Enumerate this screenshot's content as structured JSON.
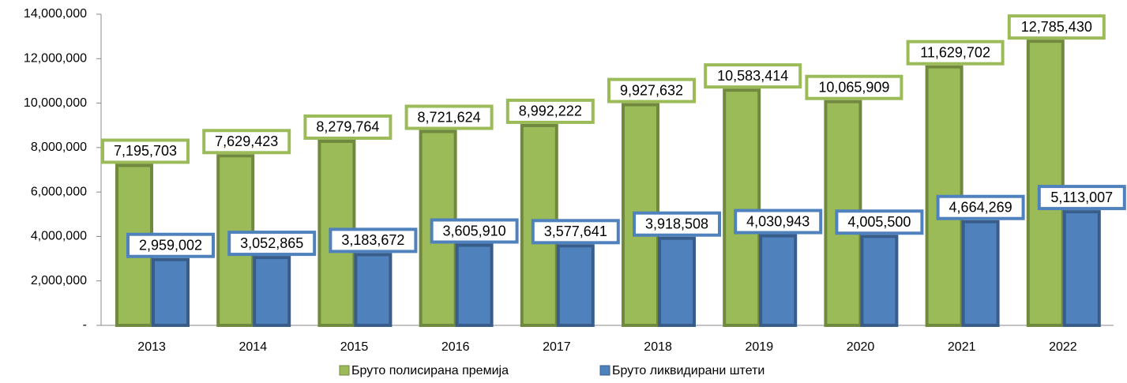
{
  "chart_data": {
    "type": "bar",
    "categories": [
      "2013",
      "2014",
      "2015",
      "2016",
      "2017",
      "2018",
      "2019",
      "2020",
      "2021",
      "2022"
    ],
    "series": [
      {
        "name": "Бруто полисирана премија",
        "color": "#9bbb59",
        "values": [
          7195703,
          7629423,
          8279764,
          8721624,
          8992222,
          9927632,
          10583414,
          10065909,
          11629702,
          12785430
        ],
        "value_labels": [
          "7,195,703",
          "7,629,423",
          "8,279,764",
          "8,721,624",
          "8,992,222",
          "9,927,632",
          "10,583,414",
          "10,065,909",
          "11,629,702",
          "12,785,430"
        ]
      },
      {
        "name": "Бруто ликвидирани штети",
        "color": "#4f81bd",
        "values": [
          2959002,
          3052865,
          3183672,
          3605910,
          3577641,
          3918508,
          4030943,
          4005500,
          4664269,
          5113007
        ],
        "value_labels": [
          "2,959,002",
          "3,052,865",
          "3,183,672",
          "3,605,910",
          "3,577,641",
          "3,918,508",
          "4,030,943",
          "4,005,500",
          "4,664,269",
          "5,113,007"
        ]
      }
    ],
    "ylim": [
      0,
      14000000
    ],
    "yticks": [
      {
        "value": 0,
        "label": "-"
      },
      {
        "value": 2000000,
        "label": "2,000,000"
      },
      {
        "value": 4000000,
        "label": "4,000,000"
      },
      {
        "value": 6000000,
        "label": "6,000,000"
      },
      {
        "value": 8000000,
        "label": "8,000,000"
      },
      {
        "value": 10000000,
        "label": "10,000,000"
      },
      {
        "value": 12000000,
        "label": "12,000,000"
      },
      {
        "value": 14000000,
        "label": "14,000,000"
      }
    ],
    "legend": "bottom"
  }
}
